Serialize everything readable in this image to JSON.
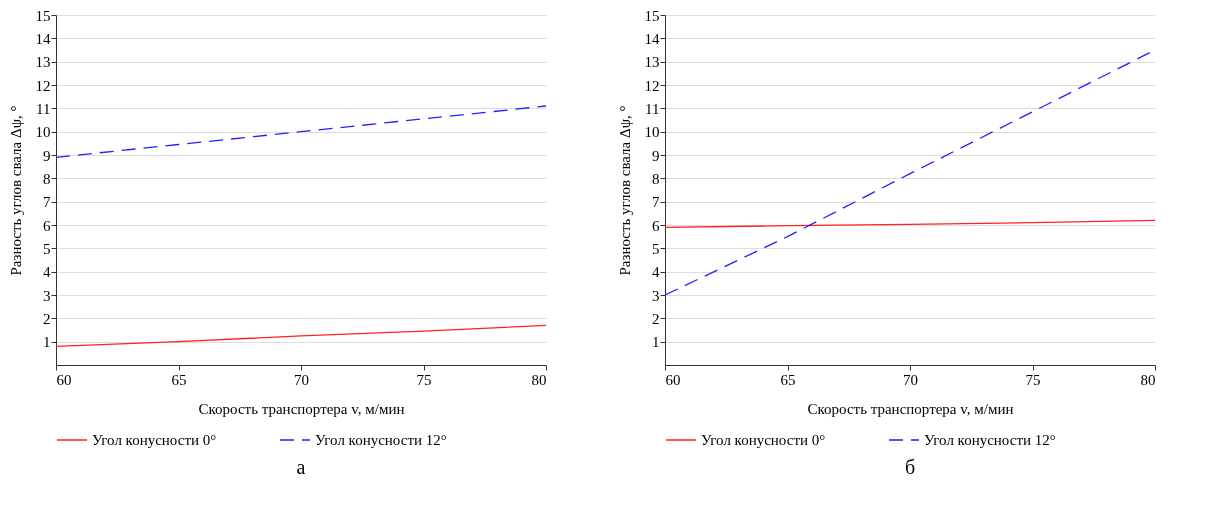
{
  "chart_data": [
    {
      "type": "line",
      "xlabel": "Скорость транспортера v, м/мин",
      "ylabel": "Разность углов свала Δψ, °",
      "x": [
        60,
        65,
        70,
        75,
        80
      ],
      "series": [
        {
          "name": "Угол конусности 0°",
          "color": "#ff2020",
          "line_style": "solid",
          "values": [
            0.8,
            1.0,
            1.25,
            1.45,
            1.7
          ]
        },
        {
          "name": "Угол конусности 12°",
          "color": "#2020ff",
          "line_style": "dashed",
          "values": [
            8.9,
            9.45,
            10.0,
            10.55,
            11.1
          ]
        }
      ],
      "xlim": [
        60,
        80
      ],
      "xticks": [
        60,
        65,
        70,
        75,
        80
      ],
      "ylim": [
        0,
        15
      ],
      "yticks": [
        1,
        2,
        3,
        4,
        5,
        6,
        7,
        8,
        9,
        10,
        11,
        12,
        13,
        14,
        15
      ],
      "grid": "y",
      "legend": "bottom",
      "annotations": [
        "а"
      ]
    },
    {
      "type": "line",
      "xlabel": "Скорость транспортера v, м/мин",
      "ylabel": "Разность углов свала Δψ, °",
      "x": [
        60,
        65,
        70,
        75,
        80
      ],
      "series": [
        {
          "name": "Угол конусности 0°",
          "color": "#ff2020",
          "line_style": "solid",
          "values": [
            5.9,
            5.97,
            6.03,
            6.1,
            6.2
          ]
        },
        {
          "name": "Угол конусности 12°",
          "color": "#2020ff",
          "line_style": "dashed",
          "values": [
            3.0,
            5.5,
            8.2,
            10.85,
            13.5
          ]
        }
      ],
      "xlim": [
        60,
        80
      ],
      "xticks": [
        60,
        65,
        70,
        75,
        80
      ],
      "ylim": [
        0,
        15
      ],
      "yticks": [
        1,
        2,
        3,
        4,
        5,
        6,
        7,
        8,
        9,
        10,
        11,
        12,
        13,
        14,
        15
      ],
      "grid": "y",
      "legend": "bottom",
      "annotations": [
        "б"
      ]
    }
  ]
}
